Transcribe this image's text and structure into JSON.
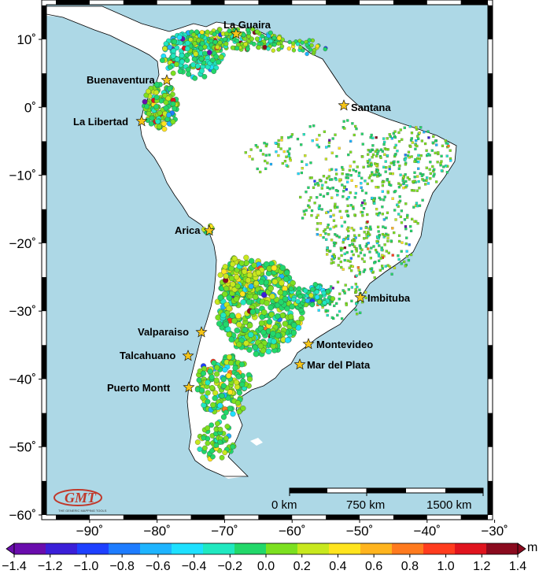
{
  "map": {
    "lon_ticks": [
      "−90˚",
      "−80˚",
      "−70˚",
      "−60˚",
      "−50˚",
      "−40˚",
      "−30˚"
    ],
    "lat_ticks": [
      "10˚",
      "0˚",
      "−10˚",
      "−20˚",
      "−30˚",
      "−40˚",
      "−50˚",
      "−60˚"
    ],
    "ocean_color": "#add8e6",
    "land_color": "#ffffff",
    "ports": [
      {
        "name": "La Guaira"
      },
      {
        "name": "Buenaventura"
      },
      {
        "name": "Santana"
      },
      {
        "name": "La Libertad"
      },
      {
        "name": "Arica"
      },
      {
        "name": "Imbituba"
      },
      {
        "name": "Valparaiso"
      },
      {
        "name": "Montevideo"
      },
      {
        "name": "Talcahuano"
      },
      {
        "name": "Mar del Plata"
      },
      {
        "name": "Puerto Montt"
      }
    ],
    "scale_bar": {
      "labels": [
        "0 km",
        "750 km",
        "1500 km"
      ]
    },
    "logo": {
      "initials": "GMT",
      "caption": "THE GENERIC MAPPING TOOLS"
    }
  },
  "colorbar": {
    "unit": "m",
    "ticks": [
      "−1.4",
      "−1.2",
      "−1.0",
      "−0.8",
      "−0.6",
      "−0.4",
      "−0.2",
      "0.0",
      "0.2",
      "0.4",
      "0.6",
      "0.8",
      "1.0",
      "1.2",
      "1.4"
    ],
    "colors": [
      "#6a0dad",
      "#3b1fd8",
      "#1e40ff",
      "#1e7cff",
      "#1eb4ff",
      "#1ee0ff",
      "#20e8c0",
      "#22d86a",
      "#7ce020",
      "#c8e81e",
      "#ffe41e",
      "#ffb41e",
      "#ff7a1e",
      "#ff3c1e",
      "#e0141e",
      "#8a0a1e"
    ]
  }
}
